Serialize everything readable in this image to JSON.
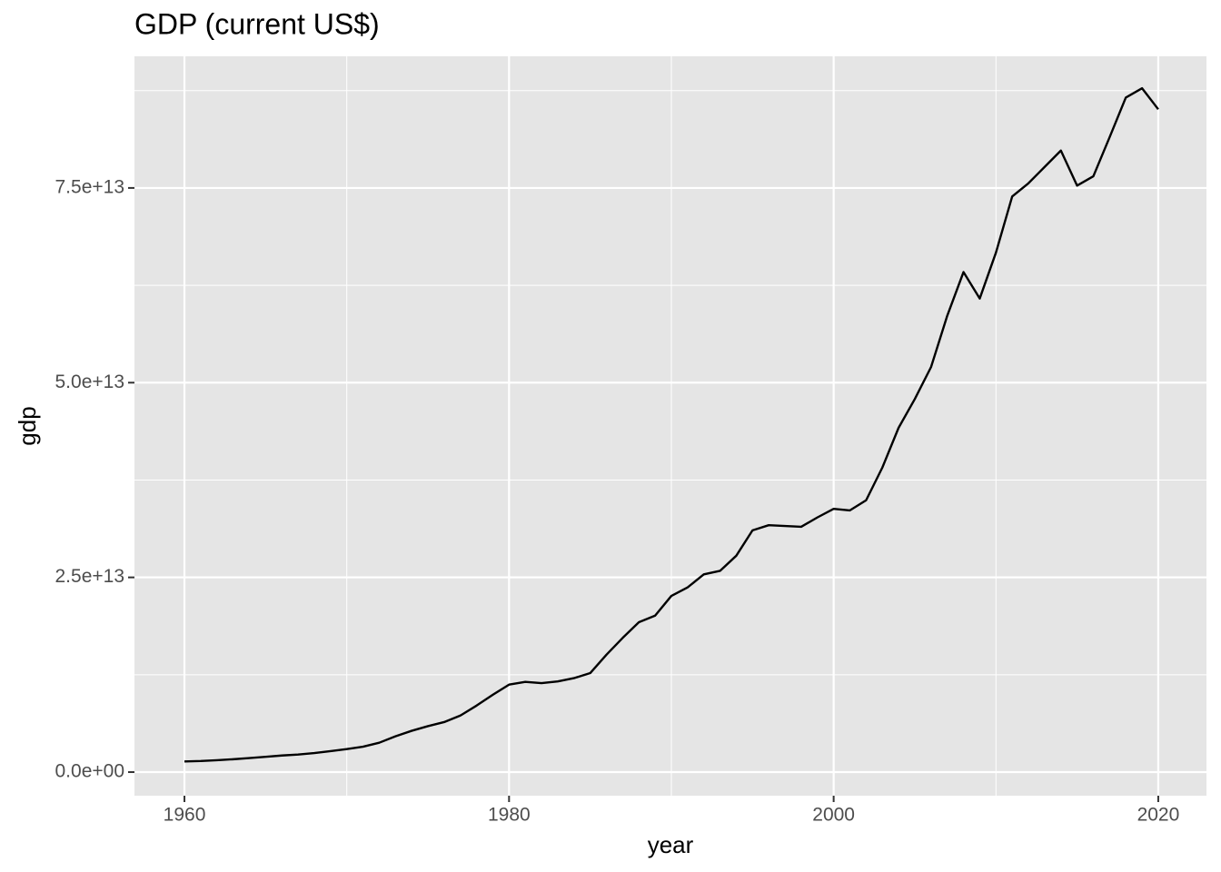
{
  "chart_data": {
    "type": "line",
    "title": "GDP (current US$)",
    "x_label": "year",
    "y_label": "gdp",
    "x": [
      1960,
      1961,
      1962,
      1963,
      1964,
      1965,
      1966,
      1967,
      1968,
      1969,
      1970,
      1971,
      1972,
      1973,
      1974,
      1975,
      1976,
      1977,
      1978,
      1979,
      1980,
      1981,
      1982,
      1983,
      1984,
      1985,
      1986,
      1987,
      1988,
      1989,
      1990,
      1991,
      1992,
      1993,
      1994,
      1995,
      1996,
      1997,
      1998,
      1999,
      2000,
      2001,
      2002,
      2003,
      2004,
      2005,
      2006,
      2007,
      2008,
      2009,
      2010,
      2011,
      2012,
      2013,
      2014,
      2015,
      2016,
      2017,
      2018,
      2019,
      2020
    ],
    "series": [
      {
        "color": "#000000",
        "values": [
          1370000000000.0,
          1420000000000.0,
          1530000000000.0,
          1650000000000.0,
          1800000000000.0,
          1960000000000.0,
          2130000000000.0,
          2260000000000.0,
          2440000000000.0,
          2690000000000.0,
          2960000000000.0,
          3260000000000.0,
          3770000000000.0,
          4590000000000.0,
          5300000000000.0,
          5900000000000.0,
          6420000000000.0,
          7260000000000.0,
          8540000000000.0,
          9930000000000.0,
          11230000000000.0,
          11590000000000.0,
          11420000000000.0,
          11640000000000.0,
          12060000000000.0,
          12710000000000.0,
          15070000000000.0,
          17230000000000.0,
          19250000000000.0,
          20090000000000.0,
          22620000000000.0,
          23710000000000.0,
          25390000000000.0,
          25840000000000.0,
          27780000000000.0,
          31040000000000.0,
          31700000000000.0,
          31600000000000.0,
          31500000000000.0,
          32700000000000.0,
          33800000000000.0,
          33600000000000.0,
          34900000000000.0,
          39100000000000.0,
          44200000000000.0,
          47900000000000.0,
          52000000000000.0,
          58600000000000.0,
          64200000000000.0,
          60800000000000.0,
          66700000000000.0,
          73900000000000.0,
          75600000000000.0,
          77700000000000.0,
          79800000000000.0,
          75300000000000.0,
          76500000000000.0,
          81500000000000.0,
          86600000000000.0,
          87800000000000.0,
          85100000000000.0
        ]
      }
    ],
    "xlim": [
      1956.92,
      2022.97
    ],
    "ylim": [
      -3030000000000.0,
      91900000000000.0
    ],
    "xticks": [
      1960,
      1980,
      2000,
      2020
    ],
    "x_minor_ticks": [
      1970,
      1990,
      2010
    ],
    "yticks": [
      {
        "value": 0,
        "label": "0.0e+00"
      },
      {
        "value": 25000000000000.0,
        "label": "2.5e+13"
      },
      {
        "value": 50000000000000.0,
        "label": "5.0e+13"
      },
      {
        "value": 75000000000000.0,
        "label": "7.5e+13"
      }
    ],
    "y_minor_ticks": [
      12500000000000.0,
      37500000000000.0,
      62500000000000.0,
      87500000000000.0
    ],
    "grid": true,
    "background": "#e5e5e5"
  }
}
